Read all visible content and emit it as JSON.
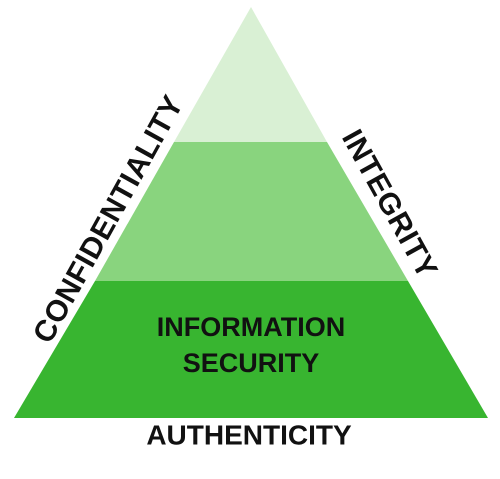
{
  "diagram": {
    "tiers": [
      {
        "name": "top",
        "color": "#d9f0d4"
      },
      {
        "name": "middle",
        "color": "#89d47e"
      },
      {
        "name": "base",
        "color": "#38b530"
      }
    ],
    "labels": {
      "left": "CONFIDENTIALITY",
      "right": "INTEGRITY",
      "bottom": "AUTHENTICITY",
      "center_line1": "INFORMATION",
      "center_line2": "SECURITY"
    }
  }
}
